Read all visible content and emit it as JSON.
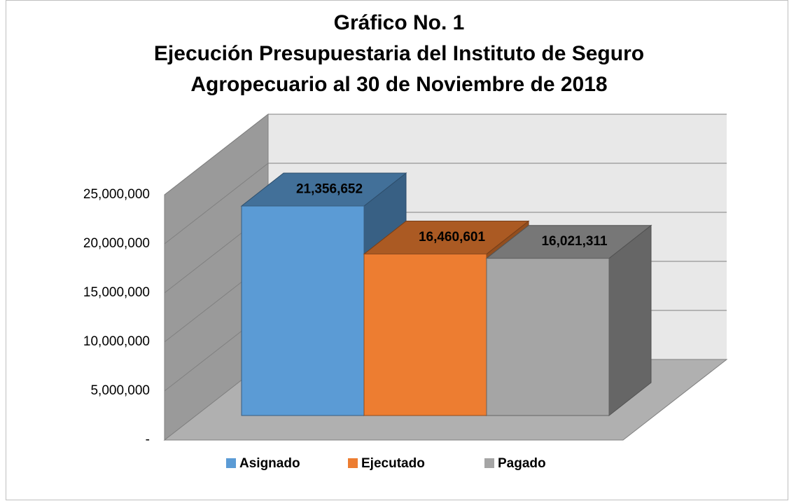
{
  "chart_data": {
    "type": "bar3d",
    "title": [
      "Gráfico No. 1",
      "Ejecución Presupuestaria del Instituto de Seguro",
      "Agropecuario al 30 de Noviembre de 2018"
    ],
    "categories": [
      null
    ],
    "series": [
      {
        "name": "Asignado",
        "color": "#5b9bd5",
        "values": [
          21356652
        ],
        "value_labels": [
          "21,356,652"
        ]
      },
      {
        "name": "Ejecutado",
        "color": "#ed7d31",
        "values": [
          16460601
        ],
        "value_labels": [
          "16,460,601"
        ]
      },
      {
        "name": "Pagado",
        "color": "#a5a5a5",
        "values": [
          16021311
        ],
        "value_labels": [
          "16,021,311"
        ]
      }
    ],
    "ylim": [
      0,
      25000000
    ],
    "yticks": [
      {
        "value": 0,
        "label": "-"
      },
      {
        "value": 5000000,
        "label": "5,000,000"
      },
      {
        "value": 10000000,
        "label": "10,000,000"
      },
      {
        "value": 15000000,
        "label": "15,000,000"
      },
      {
        "value": 20000000,
        "label": "20,000,000"
      },
      {
        "value": 25000000,
        "label": "25,000,000"
      }
    ],
    "grid": true,
    "legend": "bottom"
  }
}
